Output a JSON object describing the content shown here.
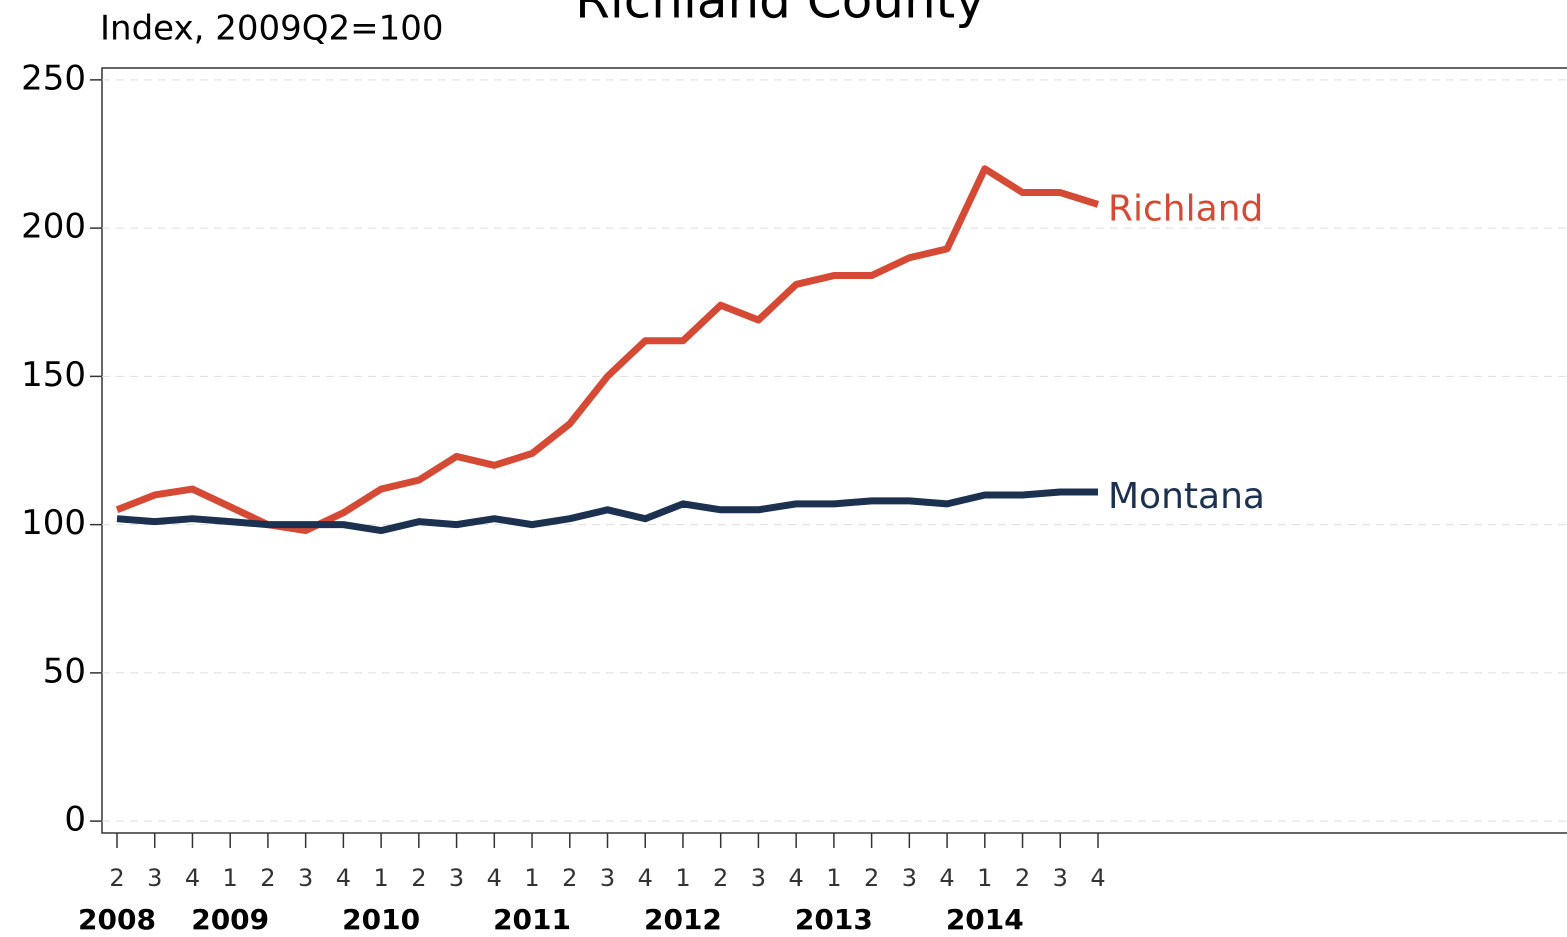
{
  "chart_data": {
    "type": "line",
    "title": "Richland County",
    "subtitle": "Index, 2009Q2=100",
    "categories": [
      "2",
      "3",
      "4",
      "1",
      "2",
      "3",
      "4",
      "1",
      "2",
      "3",
      "4",
      "1",
      "2",
      "3",
      "4",
      "1",
      "2",
      "3",
      "4",
      "1",
      "2",
      "3",
      "4",
      "1",
      "2",
      "3",
      "4"
    ],
    "year_labels": [
      "2008",
      null,
      null,
      "2009",
      null,
      null,
      null,
      "2010",
      null,
      null,
      null,
      "2011",
      null,
      null,
      null,
      "2012",
      null,
      null,
      null,
      "2013",
      null,
      null,
      null,
      "2014",
      null,
      null,
      null
    ],
    "series": [
      {
        "name": "Richland",
        "color": "#d44a35",
        "values": [
          105,
          110,
          112,
          106,
          100,
          98,
          104,
          112,
          115,
          123,
          120,
          124,
          134,
          150,
          162,
          162,
          174,
          169,
          181,
          184,
          184,
          190,
          193,
          220,
          212,
          212,
          208
        ]
      },
      {
        "name": "Montana",
        "color": "#1c3150",
        "values": [
          102,
          101,
          102,
          101,
          100,
          100,
          100,
          98,
          101,
          100,
          102,
          100,
          102,
          105,
          102,
          107,
          105,
          105,
          107,
          107,
          108,
          108,
          107,
          110,
          110,
          111,
          111
        ]
      }
    ],
    "ylim": [
      -4,
      254
    ],
    "yticks": [
      0,
      50,
      100,
      150,
      200,
      250
    ],
    "grid": true
  }
}
